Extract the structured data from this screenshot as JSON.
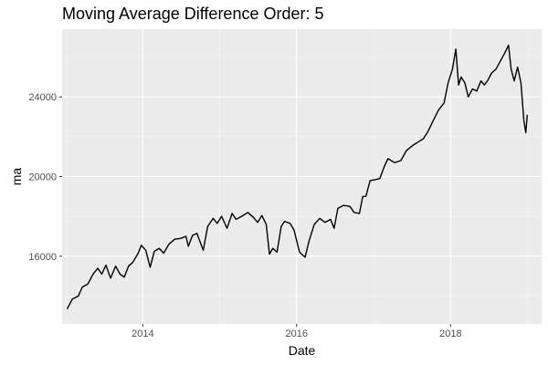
{
  "chart_data": {
    "type": "line",
    "title": "Moving Average Difference Order: 5",
    "xlabel": "Date",
    "ylabel": "ma",
    "x_ticks": [
      "2014",
      "2016",
      "2018"
    ],
    "y_ticks": [
      16000,
      20000,
      24000
    ],
    "xlim": [
      "2012-12-14",
      "2019-03-09"
    ],
    "ylim": [
      12600,
      27400
    ],
    "grid": true,
    "background": "#ebebeb",
    "line_color": "#000000",
    "series": [
      {
        "points": [
          [
            "2013-01-07",
            13350
          ],
          [
            "2013-02-01",
            13850
          ],
          [
            "2013-03-01",
            14000
          ],
          [
            "2013-03-20",
            14450
          ],
          [
            "2013-04-15",
            14600
          ],
          [
            "2013-05-10",
            15100
          ],
          [
            "2013-06-01",
            15400
          ],
          [
            "2013-06-20",
            15100
          ],
          [
            "2013-07-10",
            15550
          ],
          [
            "2013-08-01",
            14900
          ],
          [
            "2013-08-25",
            15500
          ],
          [
            "2013-09-15",
            15100
          ],
          [
            "2013-10-05",
            14950
          ],
          [
            "2013-10-25",
            15500
          ],
          [
            "2013-11-15",
            15700
          ],
          [
            "2013-12-10",
            16150
          ],
          [
            "2013-12-25",
            16550
          ],
          [
            "2014-01-15",
            16300
          ],
          [
            "2014-02-05",
            15450
          ],
          [
            "2014-02-25",
            16250
          ],
          [
            "2014-03-20",
            16400
          ],
          [
            "2014-04-10",
            16150
          ],
          [
            "2014-05-05",
            16600
          ],
          [
            "2014-06-01",
            16850
          ],
          [
            "2014-07-01",
            16900
          ],
          [
            "2014-07-25",
            17000
          ],
          [
            "2014-08-05",
            16500
          ],
          [
            "2014-08-25",
            17050
          ],
          [
            "2014-09-15",
            17150
          ],
          [
            "2014-10-15",
            16300
          ],
          [
            "2014-11-05",
            17500
          ],
          [
            "2014-12-01",
            17900
          ],
          [
            "2014-12-20",
            17650
          ],
          [
            "2015-01-10",
            18000
          ],
          [
            "2015-02-05",
            17400
          ],
          [
            "2015-03-01",
            18150
          ],
          [
            "2015-03-20",
            17850
          ],
          [
            "2015-04-15",
            18000
          ],
          [
            "2015-05-15",
            18200
          ],
          [
            "2015-06-10",
            17950
          ],
          [
            "2015-06-30",
            17700
          ],
          [
            "2015-07-20",
            18050
          ],
          [
            "2015-08-10",
            17600
          ],
          [
            "2015-08-25",
            16100
          ],
          [
            "2015-09-10",
            16400
          ],
          [
            "2015-09-30",
            16200
          ],
          [
            "2015-10-20",
            17500
          ],
          [
            "2015-11-05",
            17750
          ],
          [
            "2015-12-01",
            17650
          ],
          [
            "2015-12-20",
            17300
          ],
          [
            "2016-01-15",
            16200
          ],
          [
            "2016-02-10",
            15950
          ],
          [
            "2016-03-01",
            16800
          ],
          [
            "2016-03-25",
            17600
          ],
          [
            "2016-04-20",
            17900
          ],
          [
            "2016-05-15",
            17700
          ],
          [
            "2016-06-10",
            17850
          ],
          [
            "2016-06-27",
            17400
          ],
          [
            "2016-07-15",
            18400
          ],
          [
            "2016-08-10",
            18550
          ],
          [
            "2016-09-10",
            18500
          ],
          [
            "2016-09-30",
            18200
          ],
          [
            "2016-10-25",
            18150
          ],
          [
            "2016-11-10",
            19000
          ],
          [
            "2016-11-25",
            19000
          ],
          [
            "2016-12-15",
            19800
          ],
          [
            "2017-01-10",
            19850
          ],
          [
            "2017-01-30",
            19900
          ],
          [
            "2017-02-20",
            20500
          ],
          [
            "2017-03-10",
            20900
          ],
          [
            "2017-04-10",
            20700
          ],
          [
            "2017-05-10",
            20800
          ],
          [
            "2017-06-05",
            21300
          ],
          [
            "2017-07-10",
            21600
          ],
          [
            "2017-08-10",
            21800
          ],
          [
            "2017-08-25",
            21900
          ],
          [
            "2017-09-15",
            22250
          ],
          [
            "2017-10-10",
            22800
          ],
          [
            "2017-11-05",
            23350
          ],
          [
            "2017-12-01",
            23700
          ],
          [
            "2017-12-20",
            24700
          ],
          [
            "2018-01-10",
            25400
          ],
          [
            "2018-01-26",
            26400
          ],
          [
            "2018-02-08",
            24600
          ],
          [
            "2018-02-20",
            25000
          ],
          [
            "2018-03-10",
            24700
          ],
          [
            "2018-03-26",
            24000
          ],
          [
            "2018-04-15",
            24400
          ],
          [
            "2018-05-05",
            24300
          ],
          [
            "2018-05-25",
            24800
          ],
          [
            "2018-06-10",
            24600
          ],
          [
            "2018-06-25",
            24800
          ],
          [
            "2018-07-15",
            25200
          ],
          [
            "2018-08-05",
            25400
          ],
          [
            "2018-08-25",
            25800
          ],
          [
            "2018-09-15",
            26200
          ],
          [
            "2018-10-03",
            26600
          ],
          [
            "2018-10-15",
            25400
          ],
          [
            "2018-10-30",
            24800
          ],
          [
            "2018-11-15",
            25500
          ],
          [
            "2018-12-01",
            24700
          ],
          [
            "2018-12-15",
            22800
          ],
          [
            "2018-12-24",
            22200
          ],
          [
            "2018-12-31",
            23100
          ]
        ]
      }
    ]
  }
}
